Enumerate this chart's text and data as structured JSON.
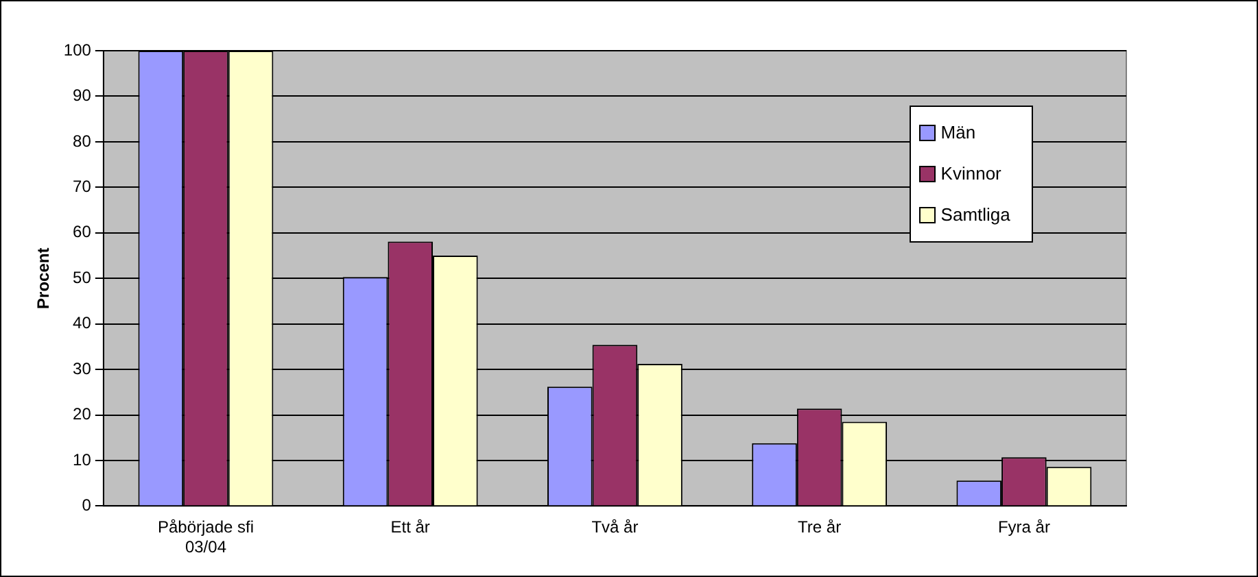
{
  "chart_data": {
    "type": "bar",
    "ylabel": "Procent",
    "categories": [
      "Påbörjade sfi 03/04",
      "Ett år",
      "Två år",
      "Tre år",
      "Fyra år"
    ],
    "series": [
      {
        "name": "Män",
        "color": "#9999ff",
        "values": [
          100,
          50.3,
          26.2,
          13.8,
          5.6
        ]
      },
      {
        "name": "Kvinnor",
        "color": "#993366",
        "values": [
          100,
          58.1,
          35.4,
          21.4,
          10.7
        ]
      },
      {
        "name": "Samtliga",
        "color": "#ffffcc",
        "values": [
          100,
          55,
          31.2,
          18.5,
          8.6
        ]
      }
    ],
    "ylim": [
      0,
      100
    ],
    "yticks": [
      0,
      10,
      20,
      30,
      40,
      50,
      60,
      70,
      80,
      90,
      100
    ],
    "grid": "y",
    "legend": "top right"
  }
}
